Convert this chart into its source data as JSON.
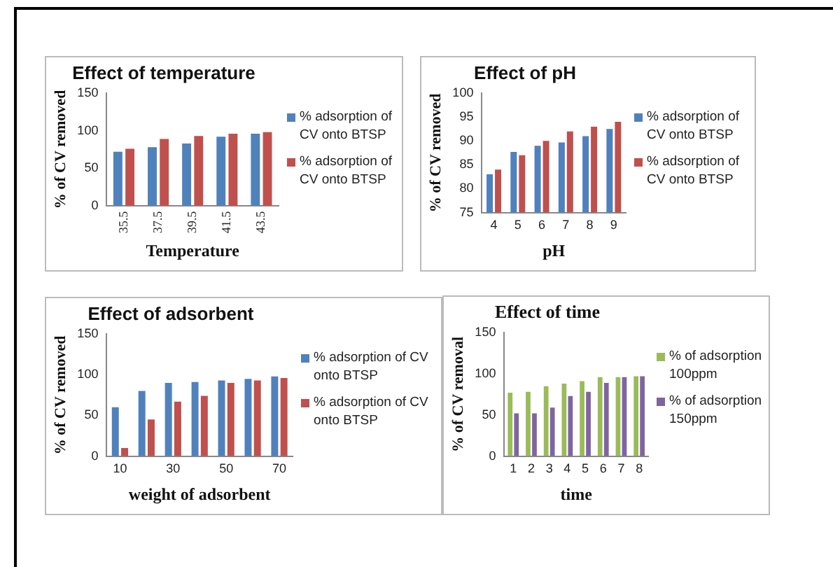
{
  "chart_data": [
    {
      "type": "bar",
      "title": "Effect of temperature",
      "xlabel": "Temperature",
      "ylabel": "% of CV removed",
      "categories": [
        "35.5",
        "37.5",
        "39.5",
        "41.5",
        "43.5"
      ],
      "ylim": [
        0,
        150
      ],
      "yticks": [
        0,
        50,
        100,
        150
      ],
      "grid": false,
      "legend": "right",
      "series": [
        {
          "name": "% adsorption of CV onto BTSP",
          "color": "#4f81bd",
          "values": [
            72,
            78,
            83,
            92,
            96
          ]
        },
        {
          "name": "% adsorption of CV onto BTSP",
          "color": "#c0504d",
          "values": [
            76,
            89,
            93,
            96,
            98
          ]
        }
      ]
    },
    {
      "type": "bar",
      "title": "Effect of pH",
      "xlabel": "pH",
      "ylabel": "% of CV removed",
      "categories": [
        "4",
        "5",
        "6",
        "7",
        "8",
        "9"
      ],
      "ylim": [
        75,
        100
      ],
      "yticks": [
        75,
        80,
        85,
        90,
        95,
        100
      ],
      "grid": false,
      "legend": "right",
      "series": [
        {
          "name": "% adsorption of CV onto BTSP",
          "color": "#4f81bd",
          "values": [
            83,
            87.7,
            89,
            89.7,
            91,
            92.5
          ]
        },
        {
          "name": "% adsorption of CV onto BTSP",
          "color": "#c0504d",
          "values": [
            84,
            87,
            90,
            92,
            93,
            94
          ]
        }
      ]
    },
    {
      "type": "bar",
      "title": "Effect of adsorbent",
      "xlabel": "weight of adsorbent",
      "ylabel": "% of CV removed",
      "categories": [
        "10",
        null,
        "30",
        null,
        "50",
        null,
        "70"
      ],
      "ylim": [
        0,
        150
      ],
      "yticks": [
        0,
        50,
        100,
        150
      ],
      "grid": false,
      "legend": "right",
      "series": [
        {
          "name": "% adsorption of CV onto BTSP",
          "color": "#4f81bd",
          "values": [
            60,
            80,
            90,
            91,
            93,
            95,
            98
          ]
        },
        {
          "name": "% adsorption of CV onto BTSP",
          "color": "#c0504d",
          "values": [
            10,
            45,
            67,
            74,
            90,
            93,
            96
          ]
        }
      ]
    },
    {
      "type": "bar",
      "title": "Effect of time",
      "xlabel": "time",
      "ylabel": "% of CV removal",
      "categories": [
        "1",
        "2",
        "3",
        "4",
        "5",
        "6",
        "7",
        "8"
      ],
      "ylim": [
        0,
        150
      ],
      "yticks": [
        0,
        50,
        100,
        150
      ],
      "grid": false,
      "legend": "right",
      "series": [
        {
          "name": "% of adsorption 100ppm",
          "color": "#9bbb59",
          "values": [
            77,
            78,
            85,
            88,
            91,
            96,
            96,
            97
          ]
        },
        {
          "name": "% of adsorption 150ppm",
          "color": "#8064a2",
          "values": [
            52,
            52,
            59,
            73,
            78,
            89,
            96,
            97
          ]
        }
      ]
    }
  ]
}
